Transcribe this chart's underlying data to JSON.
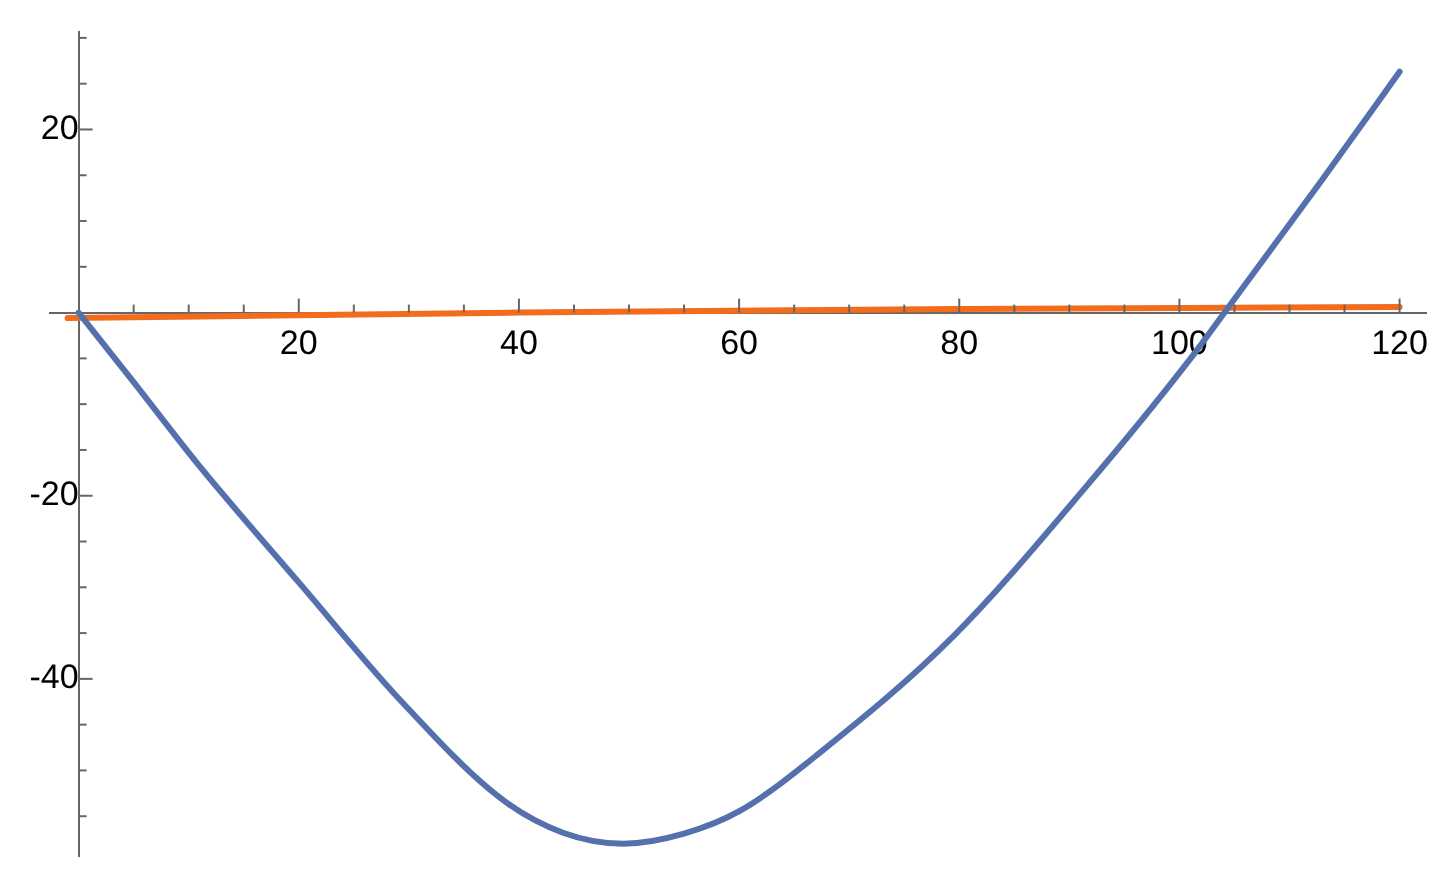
{
  "chart_data": {
    "type": "line",
    "xlim": [
      -2.6,
      122.4
    ],
    "ylim": [
      -59.3,
      30.6
    ],
    "xticks": [
      {
        "value": 5,
        "label": null
      },
      {
        "value": 10,
        "label": null
      },
      {
        "value": 15,
        "label": null
      },
      20,
      {
        "value": 25,
        "label": null
      },
      {
        "value": 30,
        "label": null
      },
      {
        "value": 35,
        "label": null
      },
      40,
      {
        "value": 45,
        "label": null
      },
      {
        "value": 50,
        "label": null
      },
      {
        "value": 55,
        "label": null
      },
      60,
      {
        "value": 65,
        "label": null
      },
      {
        "value": 70,
        "label": null
      },
      {
        "value": 75,
        "label": null
      },
      80,
      {
        "value": 85,
        "label": null
      },
      {
        "value": 90,
        "label": null
      },
      {
        "value": 95,
        "label": null
      },
      100,
      {
        "value": 105,
        "label": null
      },
      {
        "value": 110,
        "label": null
      },
      {
        "value": 115,
        "label": null
      },
      120
    ],
    "yticks": [
      {
        "value": -55,
        "label": null
      },
      {
        "value": -50,
        "label": null
      },
      {
        "value": -45,
        "label": null
      },
      -40,
      {
        "value": -35,
        "label": null
      },
      {
        "value": -30,
        "label": null
      },
      {
        "value": -25,
        "label": null
      },
      -20,
      {
        "value": -15,
        "label": null
      },
      {
        "value": -10,
        "label": null
      },
      {
        "value": -5,
        "label": null
      },
      {
        "value": 5,
        "label": null
      },
      {
        "value": 10,
        "label": null
      },
      {
        "value": 15,
        "label": null
      },
      20,
      {
        "value": 25,
        "label": null
      },
      {
        "value": 30,
        "label": null
      }
    ],
    "grid": false,
    "legend": false,
    "marker": "none",
    "line_style": "solid",
    "series": [
      {
        "color": "#5470ad",
        "x": [
          0,
          5,
          11,
          20.1,
          29.2,
          38.3,
          44,
          49.5,
          55,
          60.1,
          67.4,
          79.5,
          91.6,
          100.7,
          104.7,
          112.9,
          120
        ],
        "values": [
          0,
          -7.6,
          -16.8,
          -29.6,
          -42.3,
          -53,
          -56.8,
          -58,
          -56.9,
          -54.4,
          -48,
          -35.3,
          -18.9,
          -5.5,
          1,
          14.4,
          26.3
        ]
      },
      {
        "color": "#f26c1e",
        "x": [
          -1,
          40,
          80,
          120
        ],
        "values": [
          -0.6,
          0,
          0.4,
          0.6
        ]
      }
    ]
  }
}
